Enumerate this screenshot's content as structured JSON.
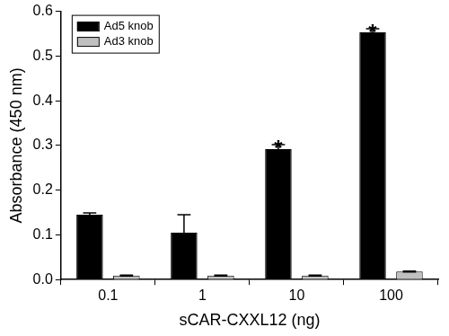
{
  "chart_data": {
    "type": "bar",
    "x_label": "sCAR-CXXL12 (ng)",
    "y_label": "Absorbance (450 nm)",
    "categories": [
      "0.1",
      "1",
      "10",
      "100"
    ],
    "series": [
      {
        "name": "Ad5 knob",
        "color": "#000000",
        "values": [
          0.145,
          0.105,
          0.292,
          0.553
        ],
        "errors": [
          0.004,
          0.04,
          0.01,
          0.008
        ]
      },
      {
        "name": "Ad3 knob",
        "color": "#c0c0c0",
        "values": [
          0.009,
          0.009,
          0.009,
          0.018
        ],
        "errors": [
          0.001,
          0.001,
          0.001,
          0.001
        ]
      }
    ],
    "annotations": [
      {
        "text": "*",
        "category": "10",
        "series": "Ad5 knob"
      },
      {
        "text": "*",
        "category": "100",
        "series": "Ad5 knob"
      }
    ],
    "ylim": [
      0,
      0.6
    ],
    "yticks": [
      {
        "value": 0,
        "label": "0.0"
      },
      0.1,
      0.2,
      0.3,
      0.4,
      0.5,
      0.6
    ],
    "grid": false,
    "legend": "upper left"
  }
}
